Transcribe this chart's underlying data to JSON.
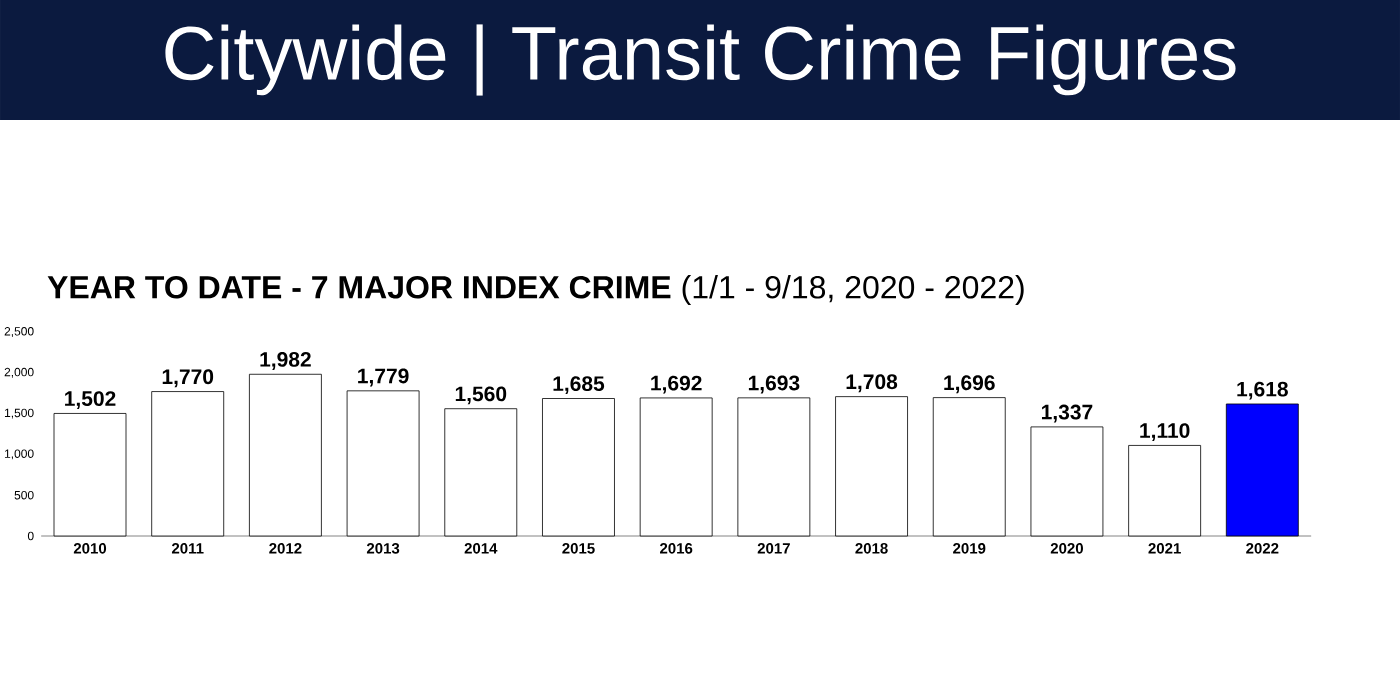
{
  "chart_data": {
    "type": "bar",
    "title": "Citywide  |  Transit Crime Figures",
    "subtitle": "**YEAR TO DATE - 7 MAJOR INDEX CRIME** (1/1 - 9/18, 2020 - 2022)",
    "categories": [
      "2010",
      "2011",
      "2012",
      "2013",
      "2014",
      "2015",
      "2016",
      "2017",
      "2018",
      "2019",
      "2020",
      "2021",
      "2022"
    ],
    "values": [
      1502,
      1770,
      1982,
      1779,
      1560,
      1685,
      1692,
      1693,
      1708,
      1696,
      1337,
      1110,
      1618
    ],
    "value_labels": [
      "1,502",
      "1,770",
      "1,982",
      "1,779",
      "1,560",
      "1,685",
      "1,692",
      "1,693",
      "1,708",
      "1,696",
      "1,337",
      "1,110",
      "1,618"
    ],
    "colors": [
      "#ffffff",
      "#ffffff",
      "#ffffff",
      "#ffffff",
      "#ffffff",
      "#ffffff",
      "#ffffff",
      "#ffffff",
      "#ffffff",
      "#ffffff",
      "#ffffff",
      "#ffffff",
      "#0000ff"
    ],
    "ylim": [
      0,
      2500
    ],
    "yticks": [
      0,
      {
        "value": 500,
        "label": "500"
      },
      {
        "value": 1000,
        "label": "1,000"
      },
      {
        "value": 1500,
        "label": "1,500"
      },
      {
        "value": 2000,
        "label": "2,000"
      },
      {
        "value": 2500,
        "label": "2,500"
      }
    ]
  }
}
